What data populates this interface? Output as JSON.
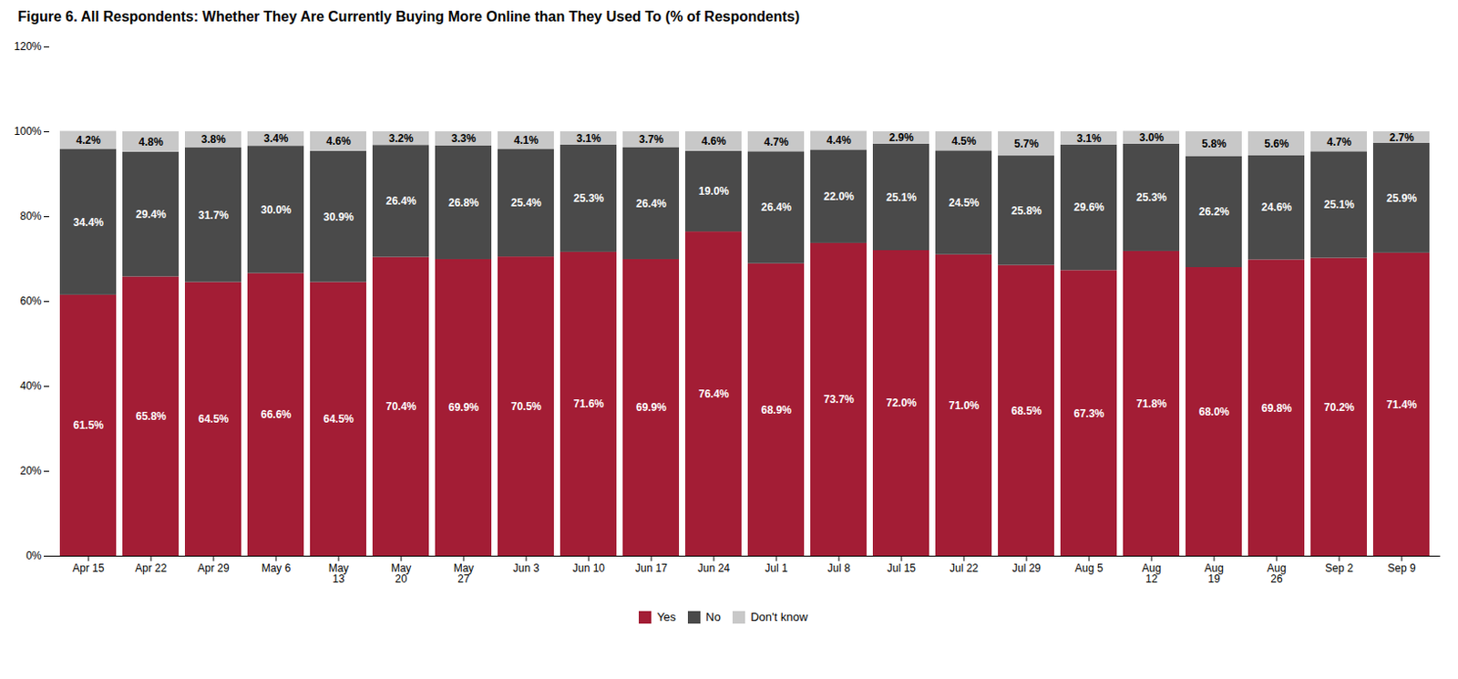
{
  "chart_data": {
    "type": "bar",
    "title": "Figure 6. All Respondents: Whether They Are Currently Buying More Online than They Used To (% of Respondents)",
    "categories": [
      "Apr 15",
      "Apr 22",
      "Apr 29",
      "May 6",
      "May\n13",
      "May\n20",
      "May\n27",
      "Jun 3",
      "Jun 10",
      "Jun 17",
      "Jun 24",
      "Jul 1",
      "Jul 8",
      "Jul 15",
      "Jul 22",
      "Jul 29",
      "Aug 5",
      "Aug\n12",
      "Aug\n19",
      "Aug\n26",
      "Sep 2",
      "Sep 9"
    ],
    "series": [
      {
        "name": "Yes",
        "color": "#A31D35",
        "values": [
          61.5,
          65.8,
          64.5,
          66.6,
          64.5,
          70.4,
          69.9,
          70.5,
          71.6,
          69.9,
          76.4,
          68.9,
          73.7,
          72.0,
          71.0,
          68.5,
          67.3,
          71.8,
          68.0,
          69.8,
          70.2,
          71.4
        ],
        "value_labels": [
          "61.5%",
          "65.8%",
          "64.5%",
          "66.6%",
          "64.5%",
          "70.4%",
          "69.9%",
          "70.5%",
          "71.6%",
          "69.9%",
          "76.4%",
          "68.9%",
          "73.7%",
          "72.0%",
          "71.0%",
          "68.5%",
          "67.3%",
          "71.8%",
          "68.0%",
          "69.8%",
          "70.2%",
          "71.4%"
        ]
      },
      {
        "name": "No",
        "color": "#4A4A4A",
        "values": [
          34.4,
          29.4,
          31.7,
          30.0,
          30.9,
          26.4,
          26.8,
          25.4,
          25.3,
          26.4,
          19.0,
          26.4,
          22.0,
          25.1,
          24.5,
          25.8,
          29.6,
          25.3,
          26.2,
          24.6,
          25.1,
          25.9
        ],
        "value_labels": [
          "34.4%",
          "29.4%",
          "31.7%",
          "30.0%",
          "30.9%",
          "26.4%",
          "26.8%",
          "25.4%",
          "25.3%",
          "26.4%",
          "19.0%",
          "26.4%",
          "22.0%",
          "25.1%",
          "24.5%",
          "25.8%",
          "29.6%",
          "25.3%",
          "26.2%",
          "24.6%",
          "25.1%",
          "25.9%"
        ]
      },
      {
        "name": "Don't know",
        "color": "#C8C8C8",
        "values": [
          4.2,
          4.8,
          3.8,
          3.4,
          4.6,
          3.2,
          3.3,
          4.1,
          3.1,
          3.7,
          4.6,
          4.7,
          4.4,
          2.9,
          4.5,
          5.7,
          3.1,
          3.0,
          5.8,
          5.6,
          4.7,
          2.7
        ],
        "value_labels": [
          "4.2%",
          "4.8%",
          "3.8%",
          "3.4%",
          "4.6%",
          "3.2%",
          "3.3%",
          "4.1%",
          "3.1%",
          "3.7%",
          "4.6%",
          "4.7%",
          "4.4%",
          "2.9%",
          "4.5%",
          "5.7%",
          "3.1%",
          "3.0%",
          "5.8%",
          "5.6%",
          "4.7%",
          "2.7%"
        ]
      }
    ],
    "stacked": true,
    "data_labels": true,
    "legend": "bottom",
    "grid": false,
    "ylim": [
      0,
      120
    ],
    "yticks": [
      {
        "value": 0,
        "label": "0%"
      },
      {
        "value": 20,
        "label": "20%"
      },
      {
        "value": 40,
        "label": "40%"
      },
      {
        "value": 60,
        "label": "60%"
      },
      {
        "value": 80,
        "label": "80%"
      },
      {
        "value": 100,
        "label": "100%"
      },
      {
        "value": 120,
        "label": "120%"
      }
    ]
  }
}
